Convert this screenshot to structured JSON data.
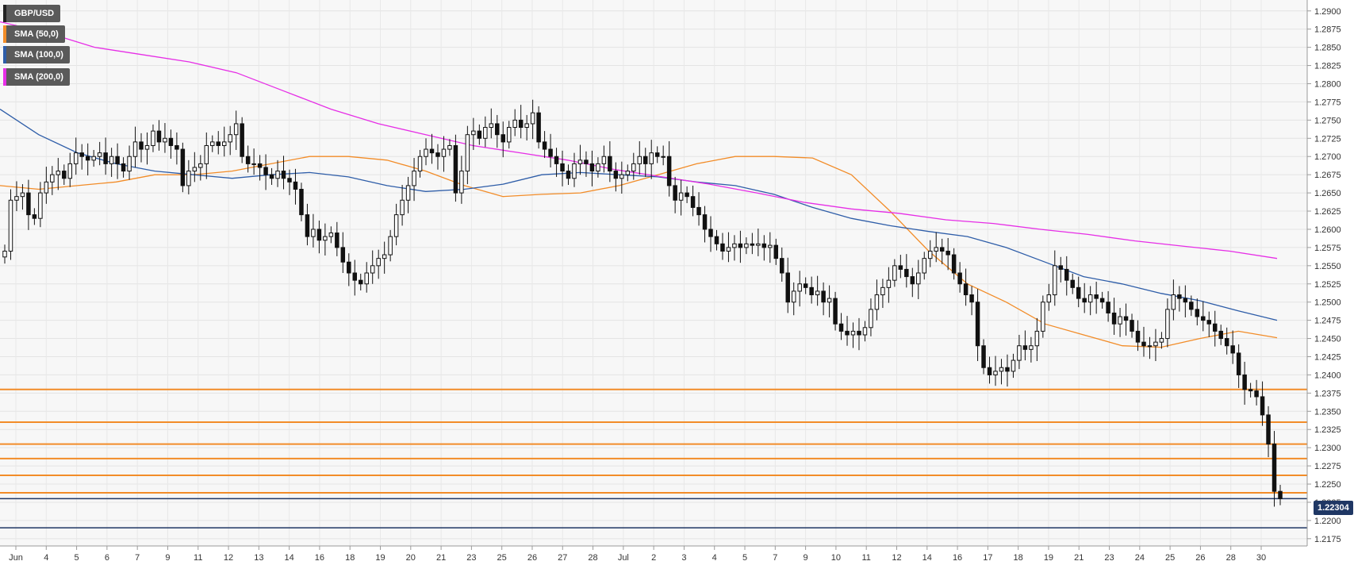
{
  "legend": [
    {
      "label": "GBP/USD",
      "color": "#222222"
    },
    {
      "label": "SMA (50,0)",
      "color": "#f28c28"
    },
    {
      "label": "SMA (100,0)",
      "color": "#2e5da8"
    },
    {
      "label": "SMA (200,0)",
      "color": "#e62ee6"
    }
  ],
  "last_price": "1.22304",
  "chart_data": {
    "type": "candlestick",
    "title": "",
    "xlabel": "",
    "ylabel": "",
    "ylim": [
      1.2165,
      1.2915
    ],
    "grid": true,
    "legend_position": "top-left",
    "y_ticks": [
      "1.2900",
      "1.2875",
      "1.2850",
      "1.2825",
      "1.2800",
      "1.2775",
      "1.2750",
      "1.2725",
      "1.2700",
      "1.2675",
      "1.2650",
      "1.2625",
      "1.2600",
      "1.2575",
      "1.2550",
      "1.2525",
      "1.2500",
      "1.2475",
      "1.2450",
      "1.2425",
      "1.2400",
      "1.2375",
      "1.2350",
      "1.2325",
      "1.2300",
      "1.2275",
      "1.2250",
      "1.2225",
      "1.2200",
      "1.2175"
    ],
    "x_ticks": [
      "Jun",
      "4",
      "5",
      "6",
      "7",
      "9",
      "11",
      "12",
      "13",
      "14",
      "16",
      "18",
      "19",
      "20",
      "21",
      "23",
      "25",
      "26",
      "27",
      "28",
      "Jul",
      "2",
      "3",
      "4",
      "5",
      "7",
      "9",
      "10",
      "11",
      "12",
      "14",
      "16",
      "17",
      "18",
      "19",
      "21",
      "23",
      "24",
      "25",
      "26",
      "28",
      "30"
    ],
    "horizontal_levels": [
      {
        "value": 1.238,
        "color": "#f28c28"
      },
      {
        "value": 1.2335,
        "color": "#f28c28"
      },
      {
        "value": 1.2305,
        "color": "#f28c28"
      },
      {
        "value": 1.2285,
        "color": "#f28c28"
      },
      {
        "value": 1.2262,
        "color": "#f28c28"
      },
      {
        "value": 1.2238,
        "color": "#f28c28"
      },
      {
        "value": 1.223,
        "color": "#1f3764"
      },
      {
        "value": 1.219,
        "color": "#1f3764"
      }
    ],
    "series": [
      {
        "name": "GBP/USD",
        "type": "candlestick",
        "closes": [
          1.257,
          1.264,
          1.2645,
          1.265,
          1.262,
          1.2615,
          1.265,
          1.2665,
          1.2675,
          1.268,
          1.267,
          1.269,
          1.2705,
          1.27,
          1.2695,
          1.27,
          1.2705,
          1.269,
          1.27,
          1.269,
          1.268,
          1.27,
          1.272,
          1.271,
          1.2715,
          1.2735,
          1.272,
          1.2725,
          1.2715,
          1.271,
          1.266,
          1.268,
          1.2685,
          1.269,
          1.2715,
          1.272,
          1.2715,
          1.272,
          1.273,
          1.2745,
          1.27,
          1.269,
          1.269,
          1.2685,
          1.2675,
          1.267,
          1.268,
          1.267,
          1.2665,
          1.2655,
          1.262,
          1.259,
          1.26,
          1.2585,
          1.259,
          1.2595,
          1.2575,
          1.2555,
          1.254,
          1.253,
          1.2525,
          1.254,
          1.255,
          1.256,
          1.2565,
          1.259,
          1.262,
          1.264,
          1.266,
          1.268,
          1.27,
          1.271,
          1.2705,
          1.27,
          1.271,
          1.2715,
          1.265,
          1.268,
          1.273,
          1.2735,
          1.2725,
          1.274,
          1.2745,
          1.273,
          1.272,
          1.274,
          1.275,
          1.274,
          1.2745,
          1.276,
          1.272,
          1.271,
          1.27,
          1.269,
          1.268,
          1.267,
          1.269,
          1.2695,
          1.269,
          1.268,
          1.269,
          1.27,
          1.268,
          1.267,
          1.2675,
          1.268,
          1.269,
          1.27,
          1.269,
          1.2705,
          1.27,
          1.27,
          1.266,
          1.264,
          1.265,
          1.2645,
          1.263,
          1.262,
          1.26,
          1.259,
          1.258,
          1.257,
          1.2575,
          1.258,
          1.2575,
          1.258,
          1.2578,
          1.258,
          1.2575,
          1.2578,
          1.256,
          1.254,
          1.25,
          1.2515,
          1.2525,
          1.252,
          1.251,
          1.2515,
          1.25,
          1.2505,
          1.247,
          1.246,
          1.2455,
          1.246,
          1.2455,
          1.2465,
          1.249,
          1.251,
          1.252,
          1.253,
          1.255,
          1.2545,
          1.2535,
          1.2525,
          1.254,
          1.256,
          1.257,
          1.2575,
          1.257,
          1.2565,
          1.254,
          1.2525,
          1.251,
          1.25,
          1.244,
          1.241,
          1.24,
          1.2405,
          1.241,
          1.2405,
          1.242,
          1.244,
          1.2435,
          1.244,
          1.246,
          1.25,
          1.251,
          1.255,
          1.2545,
          1.253,
          1.252,
          1.2505,
          1.25,
          1.251,
          1.2505,
          1.25,
          1.2485,
          1.247,
          1.248,
          1.2475,
          1.246,
          1.2445,
          1.244,
          1.244,
          1.2445,
          1.245,
          1.249,
          1.251,
          1.2505,
          1.25,
          1.249,
          1.248,
          1.2475,
          1.247,
          1.246,
          1.245,
          1.244,
          1.243,
          1.24,
          1.238,
          1.2378,
          1.237,
          1.2345,
          1.2305,
          1.224,
          1.223
        ]
      },
      {
        "name": "SMA (50,0)",
        "type": "line",
        "values": [
          1.266,
          1.2655,
          1.266,
          1.2665,
          1.2675,
          1.2675,
          1.268,
          1.269,
          1.27,
          1.27,
          1.2695,
          1.268,
          1.266,
          1.2645,
          1.2648,
          1.265,
          1.266,
          1.2675,
          1.269,
          1.27,
          1.27,
          1.2698,
          1.2675,
          1.2625,
          1.257,
          1.2525,
          1.25,
          1.247,
          1.2455,
          1.244,
          1.2438,
          1.245,
          1.246,
          1.2451
        ]
      },
      {
        "name": "SMA (100,0)",
        "type": "line",
        "values": [
          1.2765,
          1.273,
          1.2705,
          1.269,
          1.268,
          1.2675,
          1.267,
          1.2675,
          1.2678,
          1.2672,
          1.266,
          1.2652,
          1.2655,
          1.2662,
          1.2675,
          1.2678,
          1.2675,
          1.2672,
          1.2665,
          1.266,
          1.2648,
          1.263,
          1.2615,
          1.2605,
          1.2597,
          1.259,
          1.2575,
          1.2555,
          1.2535,
          1.2525,
          1.2512,
          1.2502,
          1.2488,
          1.2475
        ]
      },
      {
        "name": "SMA (200,0)",
        "type": "line",
        "values": [
          1.2885,
          1.287,
          1.285,
          1.284,
          1.283,
          1.2815,
          1.279,
          1.2765,
          1.2745,
          1.273,
          1.2715,
          1.2705,
          1.2695,
          1.2682,
          1.2672,
          1.2662,
          1.265,
          1.2637,
          1.2628,
          1.2622,
          1.2613,
          1.2608,
          1.26,
          1.2593,
          1.2584,
          1.2577,
          1.257,
          1.256
        ]
      }
    ]
  }
}
